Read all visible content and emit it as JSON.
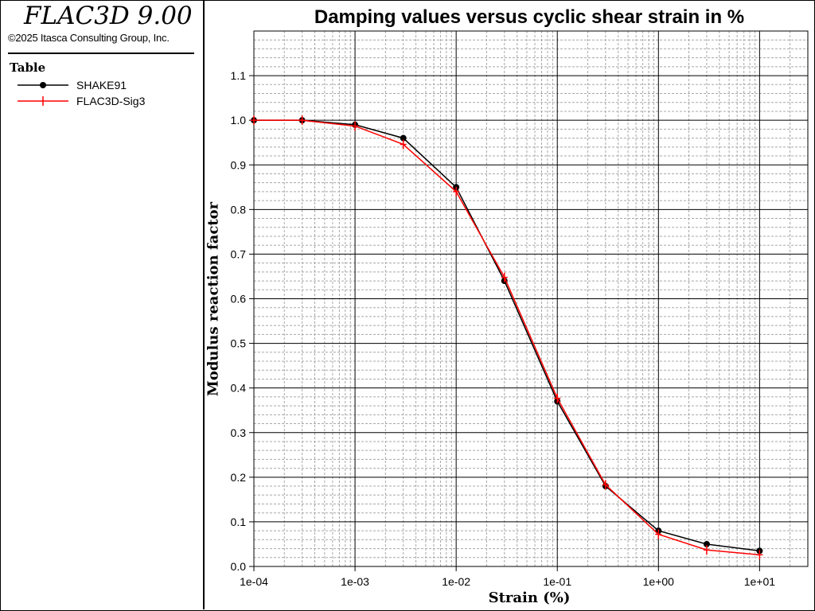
{
  "app": {
    "title": "FLAC3D 9.00",
    "copyright": "©2025 Itasca Consulting Group, Inc."
  },
  "legend": {
    "heading": "Table",
    "entries": [
      {
        "label": "SHAKE91",
        "color": "#000000",
        "marker": "circle"
      },
      {
        "label": "FLAC3D-Sig3",
        "color": "#ff0000",
        "marker": "plus"
      }
    ]
  },
  "chart_data": {
    "type": "line",
    "title": "Damping values versus cyclic shear strain in %",
    "xlabel": "Strain (%)",
    "ylabel": "Modulus reaction factor",
    "x_scale": "log",
    "xlim": [
      0.0001,
      30
    ],
    "ylim": [
      0,
      1.2
    ],
    "grid": true,
    "x_ticks": [
      0.0001,
      0.001,
      0.01,
      0.1,
      1,
      10
    ],
    "x_tick_labels": [
      "1e-04",
      "1e-03",
      "1e-02",
      "1e-01",
      "1e+00",
      "1e+01"
    ],
    "y_ticks": [
      0.0,
      0.1,
      0.2,
      0.3,
      0.4,
      0.5,
      0.6,
      0.7,
      0.8,
      0.9,
      1.0,
      1.1
    ],
    "y_tick_labels": [
      "0.0",
      "0.1",
      "0.2",
      "0.3",
      "0.4",
      "0.5",
      "0.6",
      "0.7",
      "0.8",
      "0.9",
      "1.0",
      "1.1"
    ],
    "series": [
      {
        "name": "SHAKE91",
        "color": "#000000",
        "marker": "circle",
        "x": [
          0.0001,
          0.0003,
          0.001,
          0.003,
          0.01,
          0.03,
          0.1,
          0.3,
          1,
          3,
          10
        ],
        "y": [
          1.0,
          1.0,
          0.99,
          0.96,
          0.85,
          0.64,
          0.37,
          0.18,
          0.08,
          0.05,
          0.035
        ]
      },
      {
        "name": "FLAC3D-Sig3",
        "color": "#ff0000",
        "marker": "plus",
        "x": [
          0.0001,
          0.0003,
          0.001,
          0.003,
          0.01,
          0.03,
          0.1,
          0.3,
          1,
          3,
          10
        ],
        "y": [
          1.0,
          1.0,
          0.987,
          0.946,
          0.84,
          0.648,
          0.377,
          0.183,
          0.072,
          0.037,
          0.026
        ]
      }
    ]
  }
}
